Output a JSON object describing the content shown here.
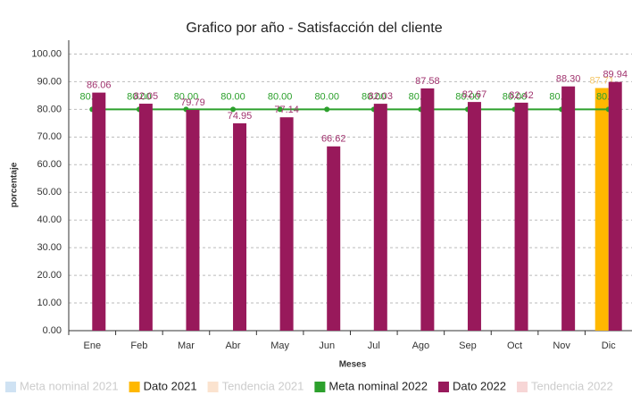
{
  "chart_data": {
    "type": "bar",
    "title": "Grafico por año - Satisfacción del cliente",
    "x_label": "Meses",
    "y_label": "porcentaje",
    "categories": [
      "Ene",
      "Feb",
      "Mar",
      "Abr",
      "May",
      "Jun",
      "Jul",
      "Ago",
      "Sep",
      "Oct",
      "Nov",
      "Dic"
    ],
    "ylim": [
      0,
      105
    ],
    "yticks": [
      {
        "value": 0,
        "label": "0.00"
      },
      {
        "value": 10,
        "label": "10.00"
      },
      {
        "value": 20,
        "label": "20.00"
      },
      {
        "value": 30,
        "label": "30.00"
      },
      {
        "value": 40,
        "label": "40.00"
      },
      {
        "value": 50,
        "label": "50.00"
      },
      {
        "value": 60,
        "label": "60.00"
      },
      {
        "value": 70,
        "label": "70.00"
      },
      {
        "value": 80,
        "label": "80.00"
      },
      {
        "value": 90,
        "label": "90.00"
      },
      {
        "value": 100,
        "label": "100.00"
      }
    ],
    "grid": true,
    "legend": "bottom",
    "series": [
      {
        "name": "Meta nominal 2021",
        "color": "#cfe2f3",
        "type": "line",
        "visible": false,
        "values": [
          null,
          null,
          null,
          null,
          null,
          null,
          null,
          null,
          null,
          null,
          null,
          null
        ]
      },
      {
        "name": "Dato 2021",
        "color": "#ffb800",
        "type": "bar",
        "visible": true,
        "values": [
          null,
          null,
          null,
          null,
          null,
          null,
          null,
          null,
          null,
          null,
          null,
          87.71
        ],
        "value_labels": [
          null,
          null,
          null,
          null,
          null,
          null,
          null,
          null,
          null,
          null,
          null,
          "87.71"
        ]
      },
      {
        "name": "Tendencia 2021",
        "color": "#fbe3cf",
        "type": "line",
        "visible": false,
        "values": [
          null,
          null,
          null,
          null,
          null,
          null,
          null,
          null,
          null,
          null,
          null,
          null
        ]
      },
      {
        "name": "Meta nominal 2022",
        "color": "#2ca02c",
        "type": "line",
        "visible": true,
        "values": [
          80,
          80,
          80,
          80,
          80,
          80,
          80,
          80,
          80,
          80,
          80,
          80
        ],
        "value_labels": [
          "80.00",
          "80.00",
          "80.00",
          "80.00",
          "80.00",
          "80.00",
          "80.00",
          "80.00",
          "80.00",
          "80.00",
          "80.00",
          "80.00"
        ]
      },
      {
        "name": "Dato 2022",
        "color": "#98195b",
        "type": "bar",
        "visible": true,
        "values": [
          86.06,
          82.05,
          79.79,
          74.95,
          77.14,
          66.62,
          82.03,
          87.58,
          82.67,
          82.42,
          88.3,
          89.94
        ],
        "value_labels": [
          "86.06",
          "82.05",
          "79.79",
          "74.95",
          "77.14",
          "66.62",
          "82.03",
          "87.58",
          "82.67",
          "82.42",
          "88.30",
          "89.94"
        ]
      },
      {
        "name": "Tendencia 2022",
        "color": "#f7d6d6",
        "type": "line",
        "visible": false,
        "values": [
          null,
          null,
          null,
          null,
          null,
          null,
          null,
          null,
          null,
          null,
          null,
          null
        ]
      }
    ]
  }
}
